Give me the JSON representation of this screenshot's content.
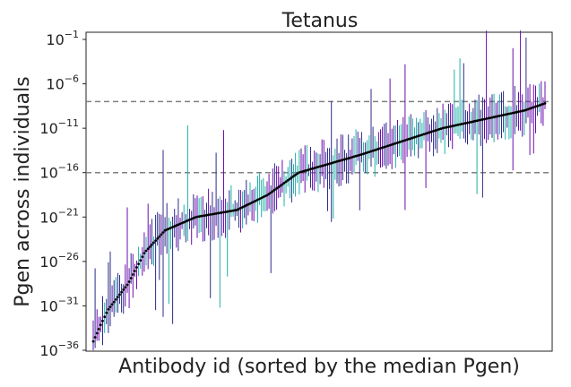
{
  "chart_data": {
    "type": "scatter",
    "title": "Tetanus",
    "xlabel": "Antibody id (sorted by the median Pgen)",
    "ylabel": "Pgen across individuals",
    "y_scale": "log10",
    "ylim_exponent": [
      -36,
      0
    ],
    "y_ticks": [
      {
        "base": "10",
        "exp": "−1",
        "value": -1
      },
      {
        "base": "10",
        "exp": "−6",
        "value": -6
      },
      {
        "base": "10",
        "exp": "−11",
        "value": -11
      },
      {
        "base": "10",
        "exp": "−16",
        "value": -16
      },
      {
        "base": "10",
        "exp": "−21",
        "value": -21
      },
      {
        "base": "10",
        "exp": "−26",
        "value": -26
      },
      {
        "base": "10",
        "exp": "−31",
        "value": -31
      },
      {
        "base": "10",
        "exp": "−36",
        "value": -36
      }
    ],
    "x_ticks_shown": false,
    "grid": false,
    "reference_lines_log10": [
      -8,
      -16
    ],
    "n_points": 240,
    "median_curve_log10": [
      [
        0,
        -35
      ],
      [
        6,
        -33.5
      ],
      [
        14,
        -31.5
      ],
      [
        24,
        -30
      ],
      [
        34,
        -28.5
      ],
      [
        50,
        -25
      ],
      [
        70,
        -22.5
      ],
      [
        100,
        -21
      ],
      [
        140,
        -20.2
      ],
      [
        170,
        -18.5
      ],
      [
        200,
        -16
      ],
      [
        230,
        -15
      ],
      [
        260,
        -14
      ],
      [
        300,
        -12.5
      ],
      [
        340,
        -11
      ],
      [
        380,
        -10
      ],
      [
        420,
        -9
      ],
      [
        440,
        -8.2
      ]
    ],
    "colors": {
      "median_points": "#000000",
      "bars": [
        "#6a0dad",
        "#1fb0a8",
        "#2b2b8a"
      ],
      "reference_line": "#808080"
    }
  }
}
